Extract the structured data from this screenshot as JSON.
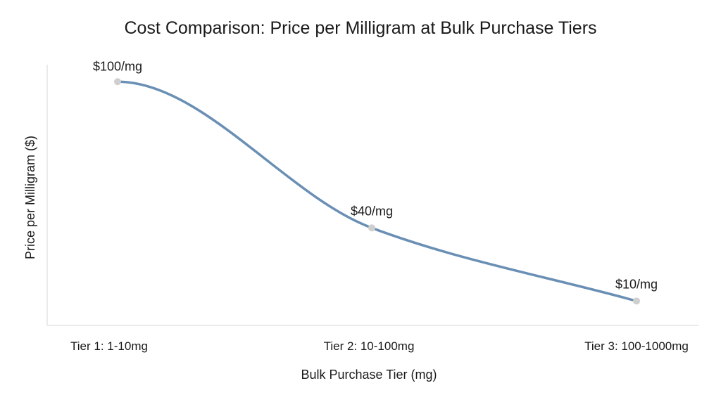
{
  "chart_data": {
    "type": "line",
    "title": "Cost Comparison: Price per Milligram at Bulk Purchase Tiers",
    "xlabel": "Bulk Purchase Tier (mg)",
    "ylabel": "Price per Milligram ($)",
    "categories": [
      "Tier 1: 1-10mg",
      "Tier 2: 10-100mg",
      "Tier 3: 100-1000mg"
    ],
    "series": [
      {
        "values": [
          100,
          40,
          10
        ],
        "data_labels": [
          "$100/mg",
          "$40/mg",
          "$10/mg"
        ]
      }
    ],
    "ylim": [
      0,
      107
    ],
    "grid": false,
    "legend": "none",
    "line_color": "#6a8fb5",
    "point_color": "#cfcfcf",
    "axis_color": "#dddddd"
  }
}
